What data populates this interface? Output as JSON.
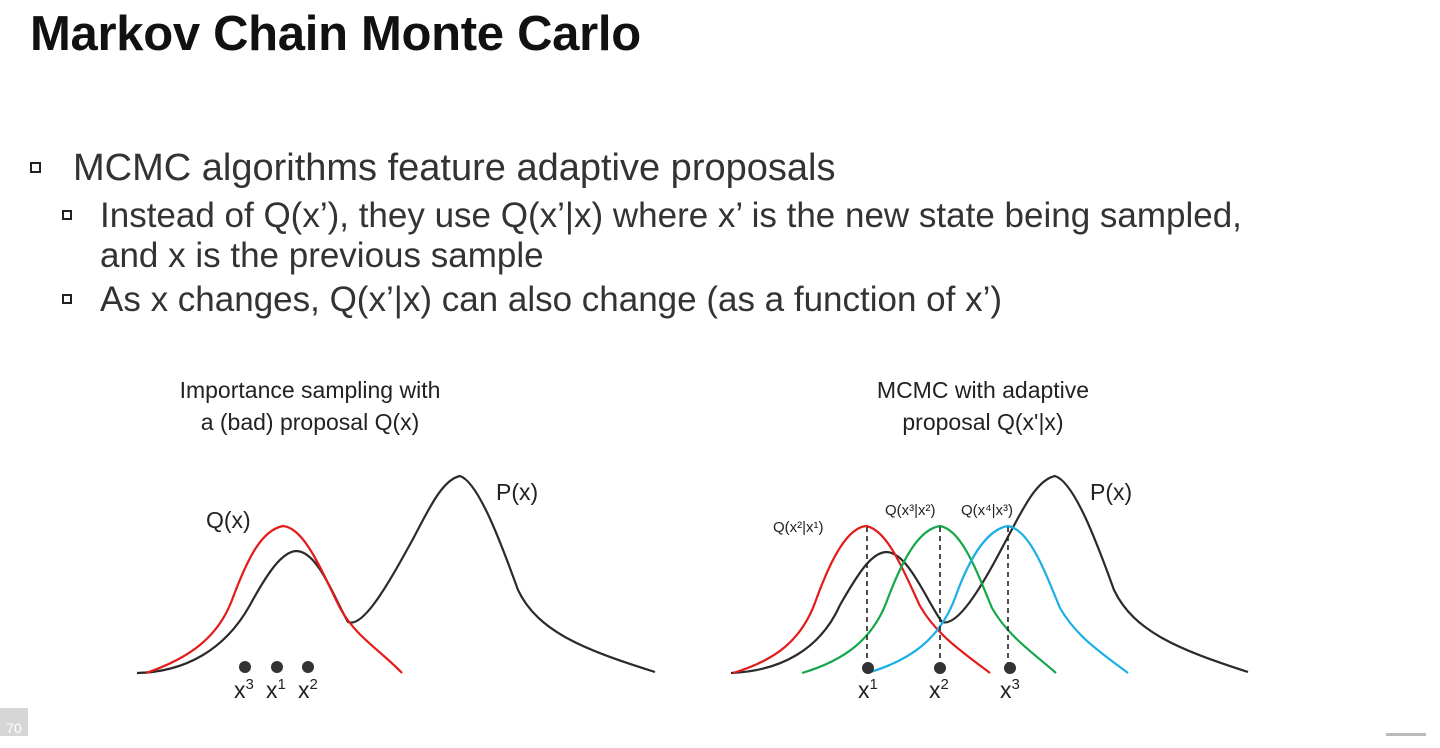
{
  "slide": {
    "title": "Markov Chain Monte Carlo",
    "page_number": "70"
  },
  "bullets": {
    "main": "MCMC algorithms feature adaptive proposals",
    "sub1_line1": "Instead of Q(x’), they use Q(x’|x) where x’ is the new state being sampled,",
    "sub1_line2": "and x is the previous sample",
    "sub2": "As x changes, Q(x’|x) can also change (as a function of x’)"
  },
  "left_figure": {
    "title_line1": "Importance sampling with",
    "title_line2": "a (bad) proposal Q(x)",
    "p_label": "P(x)",
    "q_label": "Q(x)",
    "samples": [
      {
        "base": "x",
        "sup": "3"
      },
      {
        "base": "x",
        "sup": "1"
      },
      {
        "base": "x",
        "sup": "2"
      }
    ]
  },
  "right_figure": {
    "title_line1": "MCMC with adaptive",
    "title_line2": "proposal Q(x'|x)",
    "p_label": "P(x)",
    "q_labels": [
      "Q(x²|x¹)",
      "Q(x³|x²)",
      "Q(x⁴|x³)"
    ],
    "samples": [
      {
        "base": "x",
        "sup": "1"
      },
      {
        "base": "x",
        "sup": "2"
      },
      {
        "base": "x",
        "sup": "3"
      }
    ]
  },
  "colors": {
    "target": "#2b2b2b",
    "proposal_red": "#e31b1b",
    "proposal_green": "#14a84a",
    "proposal_blue": "#1ab0e6"
  }
}
